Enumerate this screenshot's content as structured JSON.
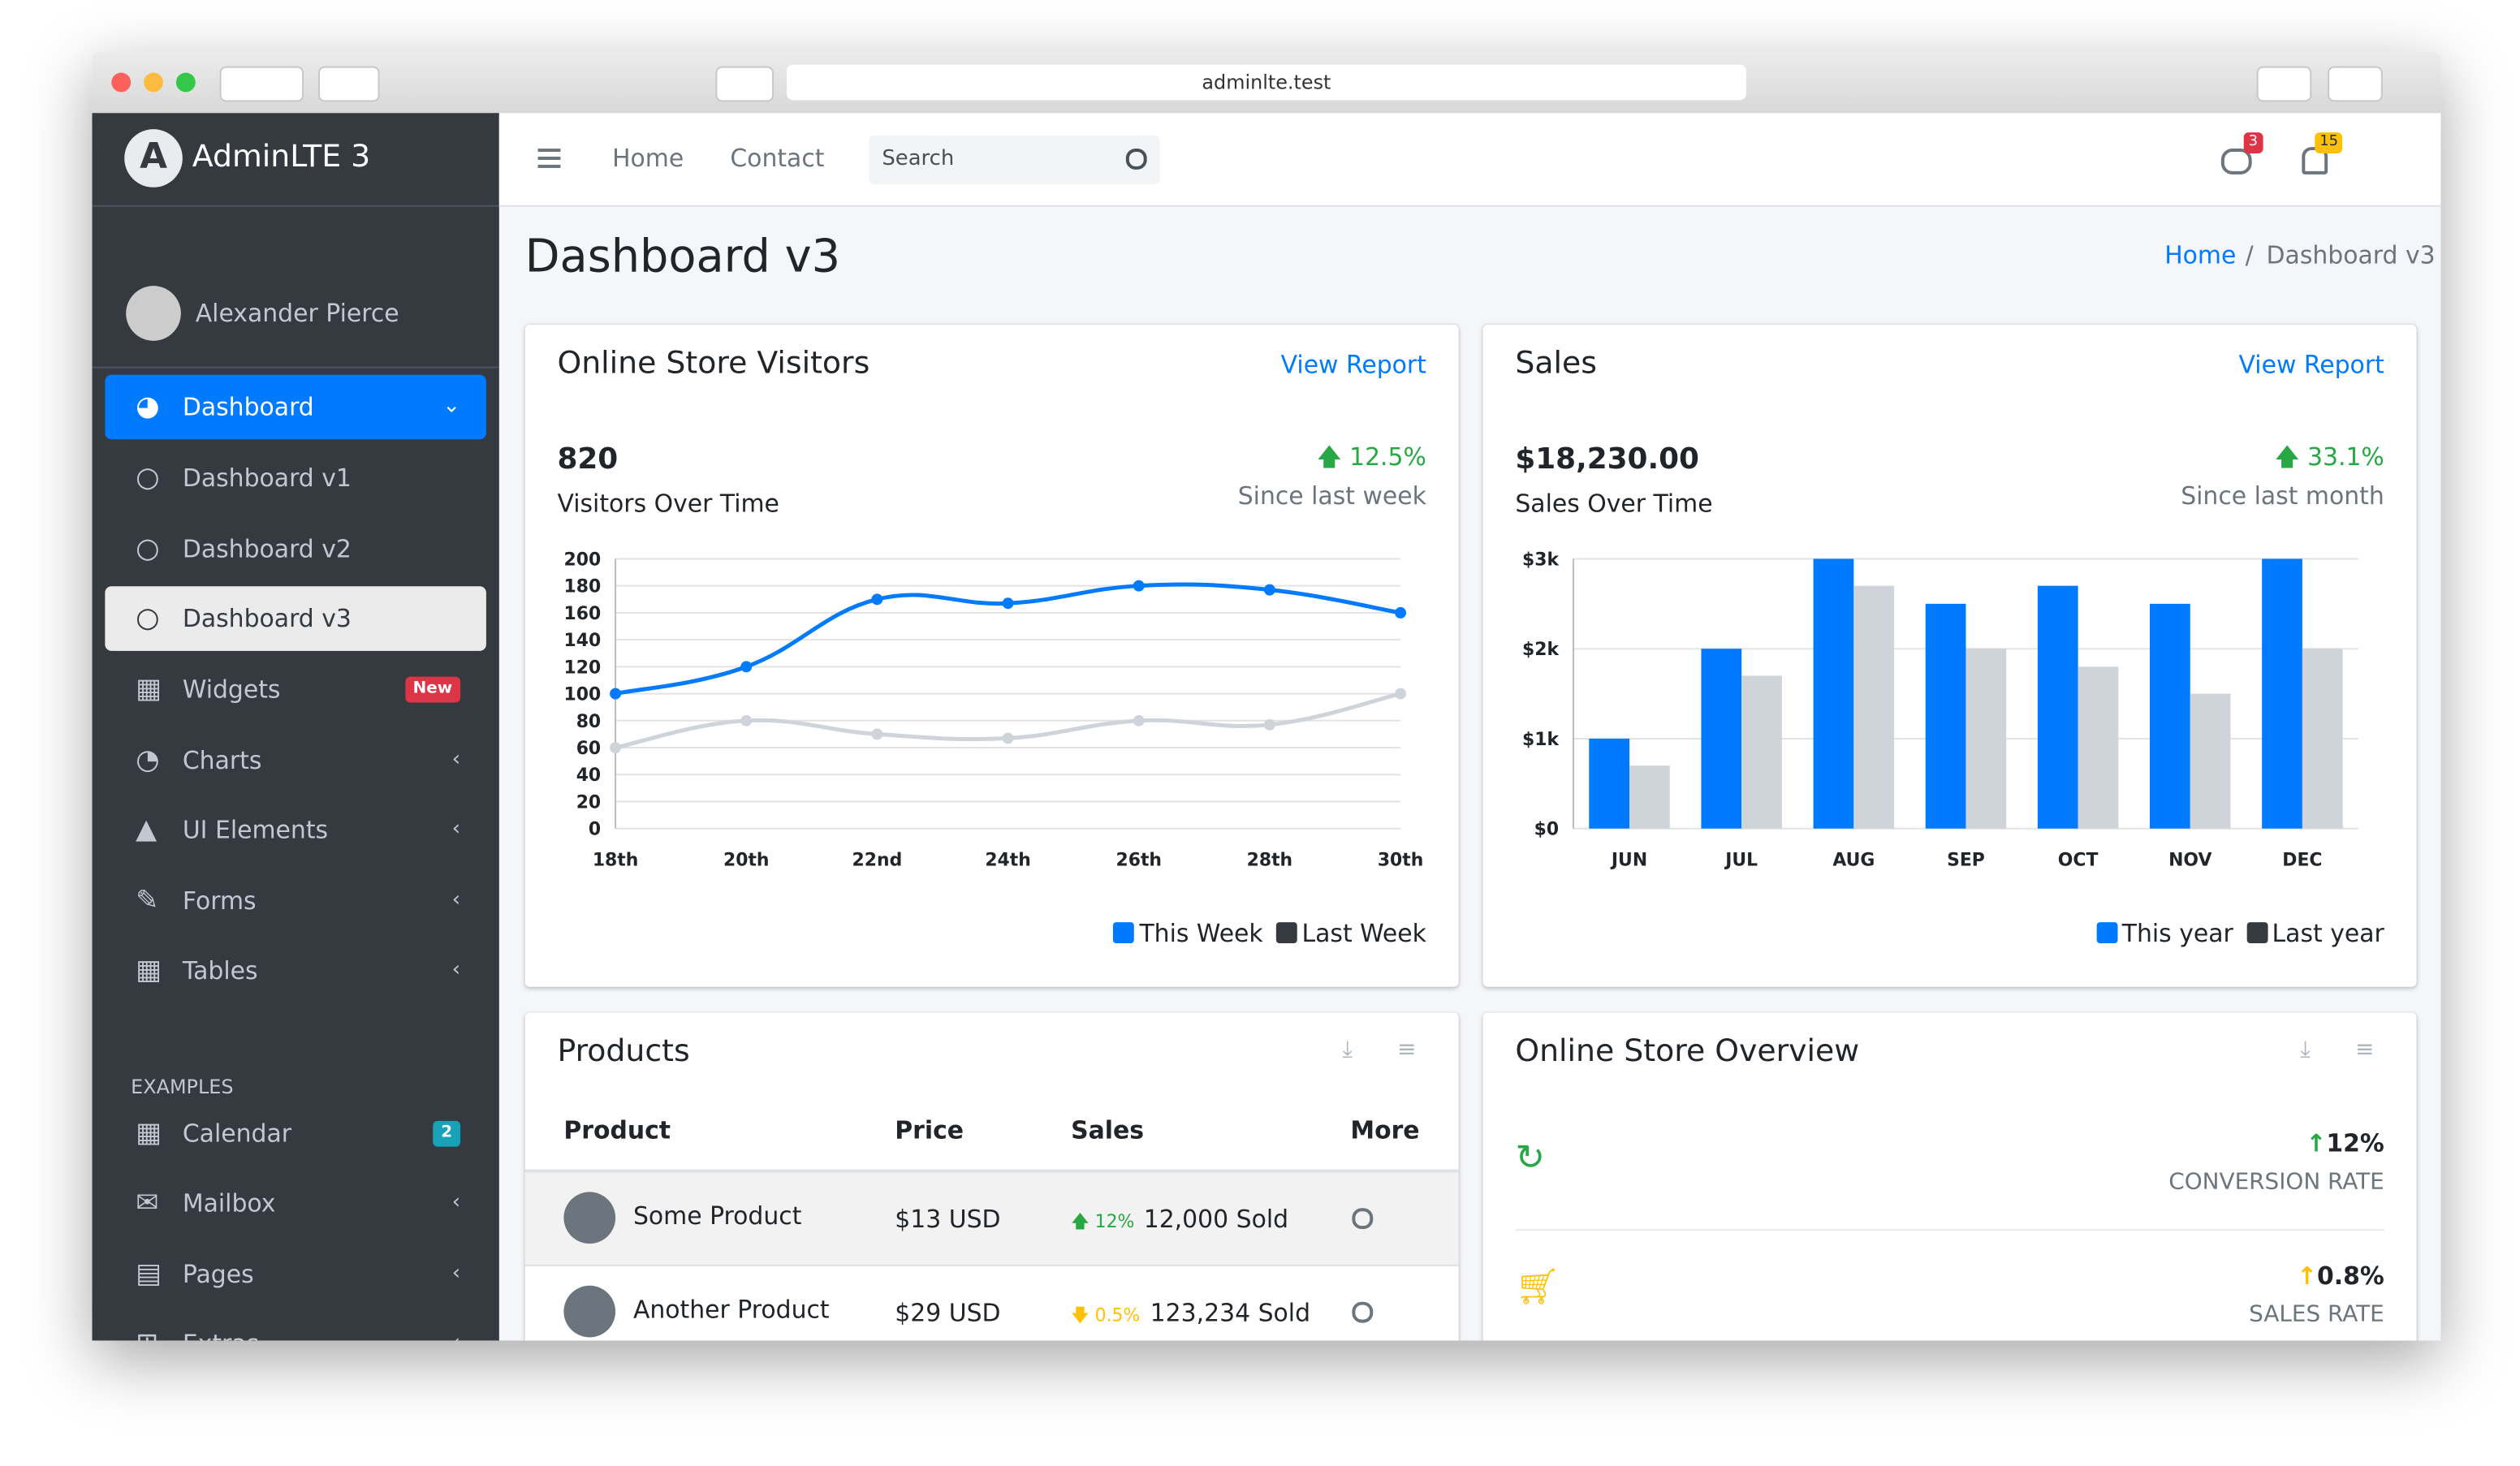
{
  "browser": {
    "url": "adminlte.test"
  },
  "sidebar": {
    "brand": "AdminLTE 3",
    "user": "Alexander Pierce",
    "menu": [
      {
        "label": "Dashboard"
      },
      {
        "label": "Dashboard v1"
      },
      {
        "label": "Dashboard v2"
      },
      {
        "label": "Dashboard v3"
      },
      {
        "label": "Widgets",
        "badge": "New"
      },
      {
        "label": "Charts"
      },
      {
        "label": "UI Elements"
      },
      {
        "label": "Forms"
      },
      {
        "label": "Tables"
      }
    ],
    "header": "EXAMPLES",
    "examples": [
      {
        "label": "Calendar",
        "badge": "2"
      },
      {
        "label": "Mailbox"
      },
      {
        "label": "Pages"
      },
      {
        "label": "Extras"
      }
    ]
  },
  "navbar": {
    "links": [
      "Home",
      "Contact"
    ],
    "search": "Search",
    "messages_badge": "3",
    "notifications_badge": "15"
  },
  "page": {
    "title": "Dashboard v3",
    "breadcrumb": [
      "Home",
      "Dashboard v3"
    ]
  },
  "visitors": {
    "title": "Online Store Visitors",
    "link": "View Report",
    "total": "820",
    "total_label": "Visitors Over Time",
    "change": "12.5%",
    "change_label": "Since last week",
    "chart": {
      "type": "line",
      "categories": [
        "18th",
        "20th",
        "22nd",
        "24th",
        "26th",
        "28th",
        "30th"
      ],
      "series": [
        {
          "name": "This Week",
          "color": "#007bff",
          "legend_color": "#007bff",
          "values": [
            100,
            120,
            170,
            167,
            180,
            177,
            160
          ]
        },
        {
          "name": "Last Week",
          "color": "#ced4da",
          "legend_color": "#343a40",
          "values": [
            60,
            80,
            70,
            67,
            80,
            77,
            100
          ]
        }
      ],
      "ylim": [
        0,
        200
      ],
      "yticks": [
        0,
        20,
        40,
        60,
        80,
        100,
        120,
        140,
        160,
        180,
        200
      ],
      "grid": true
    }
  },
  "sales": {
    "title": "Sales",
    "link": "View Report",
    "total": "$18,230.00",
    "total_label": "Sales Over Time",
    "change": "33.1%",
    "change_label": "Since last month",
    "chart": {
      "type": "bar",
      "categories": [
        "JUN",
        "JUL",
        "AUG",
        "SEP",
        "OCT",
        "NOV",
        "DEC"
      ],
      "series": [
        {
          "name": "This year",
          "color": "#007bff",
          "legend_color": "#007bff",
          "values": [
            1000,
            2000,
            3000,
            2500,
            2700,
            2500,
            3000
          ]
        },
        {
          "name": "Last year",
          "color": "#ced4da",
          "legend_color": "#343a40",
          "values": [
            700,
            1700,
            2700,
            2000,
            1800,
            1500,
            2000
          ]
        }
      ],
      "ylim": [
        0,
        3000
      ],
      "yticks": [
        {
          "value": 0,
          "label": "$0"
        },
        {
          "value": 1000,
          "label": "$1k"
        },
        {
          "value": 2000,
          "label": "$2k"
        },
        {
          "value": 3000,
          "label": "$3k"
        }
      ],
      "grid": true
    }
  },
  "products": {
    "title": "Products",
    "columns": [
      "Product",
      "Price",
      "Sales",
      "More"
    ],
    "rows": [
      {
        "name": "Some Product",
        "price": "$13 USD",
        "change": "12%",
        "sold": "12,000 Sold"
      },
      {
        "name": "Another Product",
        "price": "$29 USD",
        "change": "0.5%",
        "sold": "123,234 Sold"
      }
    ]
  },
  "overview": {
    "title": "Online Store Overview",
    "stats": [
      {
        "value": "12%",
        "label": "CONVERSION RATE"
      },
      {
        "value": "0.8%",
        "label": "SALES RATE"
      }
    ]
  }
}
